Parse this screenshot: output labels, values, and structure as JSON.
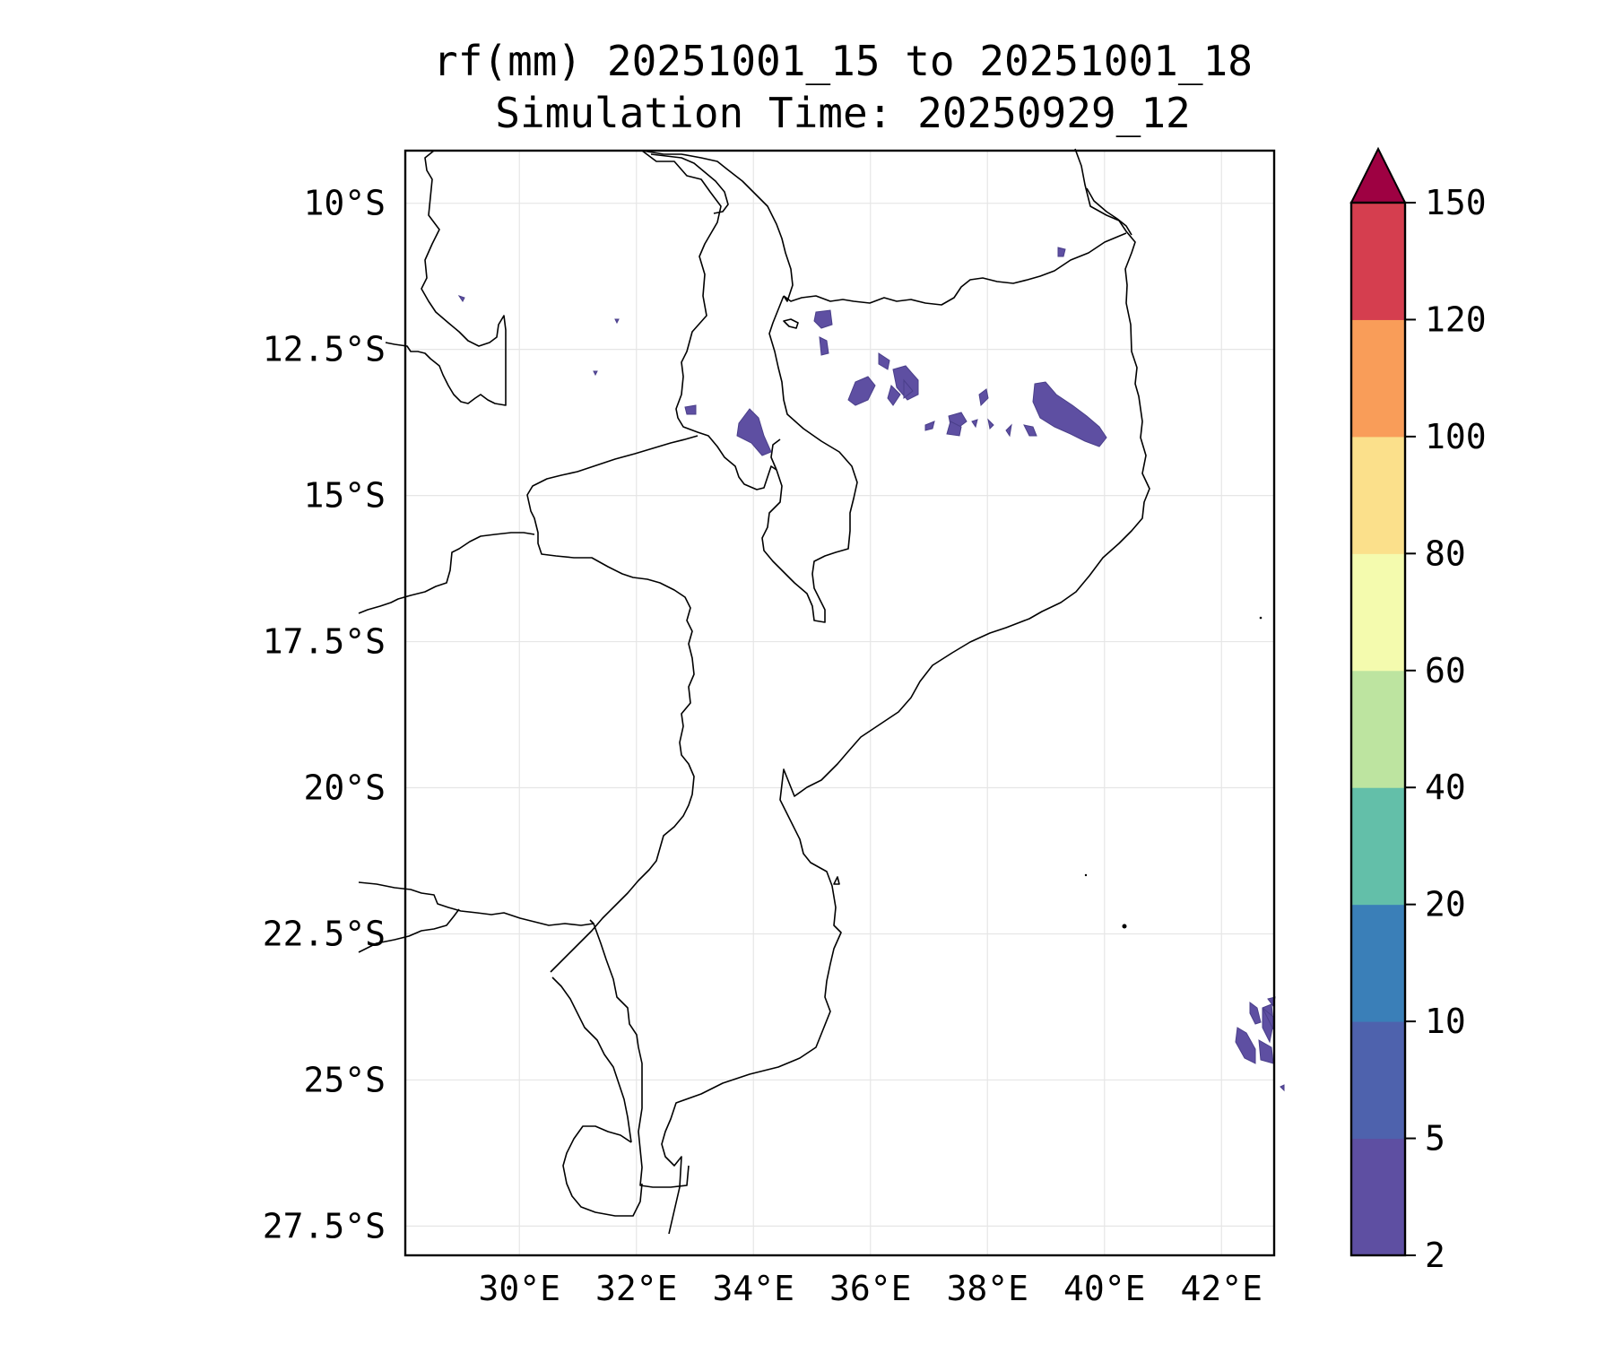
{
  "title": {
    "line1": "rf(mm) 20251001_15 to 20251001_18",
    "line2": "Simulation Time: 20250929_12"
  },
  "map": {
    "lon_range": [
      28.05,
      42.9
    ],
    "lat_range": [
      -28.0,
      -9.1
    ],
    "x_ticks": [
      {
        "value": 30,
        "label": "30°E"
      },
      {
        "value": 32,
        "label": "32°E"
      },
      {
        "value": 34,
        "label": "34°E"
      },
      {
        "value": 36,
        "label": "36°E"
      },
      {
        "value": 38,
        "label": "38°E"
      },
      {
        "value": 40,
        "label": "40°E"
      },
      {
        "value": 42,
        "label": "42°E"
      }
    ],
    "y_ticks": [
      {
        "value": -10,
        "label": "10°S"
      },
      {
        "value": -12.5,
        "label": "12.5°S"
      },
      {
        "value": -15,
        "label": "15°S"
      },
      {
        "value": -17.5,
        "label": "17.5°S"
      },
      {
        "value": -20,
        "label": "20°S"
      },
      {
        "value": -22.5,
        "label": "22.5°S"
      },
      {
        "value": -25,
        "label": "25°S"
      },
      {
        "value": -27.5,
        "label": "27.5°S"
      }
    ],
    "grid": true,
    "rain_color": "#5e4fa2"
  },
  "colorbar": {
    "levels": [
      {
        "value": 2,
        "label": "2"
      },
      {
        "value": 5,
        "label": "5"
      },
      {
        "value": 10,
        "label": "10"
      },
      {
        "value": 20,
        "label": "20"
      },
      {
        "value": 40,
        "label": "40"
      },
      {
        "value": 60,
        "label": "60"
      },
      {
        "value": 80,
        "label": "80"
      },
      {
        "value": 100,
        "label": "100"
      },
      {
        "value": 120,
        "label": "120"
      },
      {
        "value": 150,
        "label": "150"
      }
    ],
    "colors": [
      "#5e4fa2",
      "#4e62ad",
      "#3a7fb8",
      "#63bfa9",
      "#bde4a0",
      "#f4fbae",
      "#fbe08b",
      "#f99d59",
      "#d53e4f"
    ],
    "extend_color": "#9e0142",
    "extend": "max"
  }
}
